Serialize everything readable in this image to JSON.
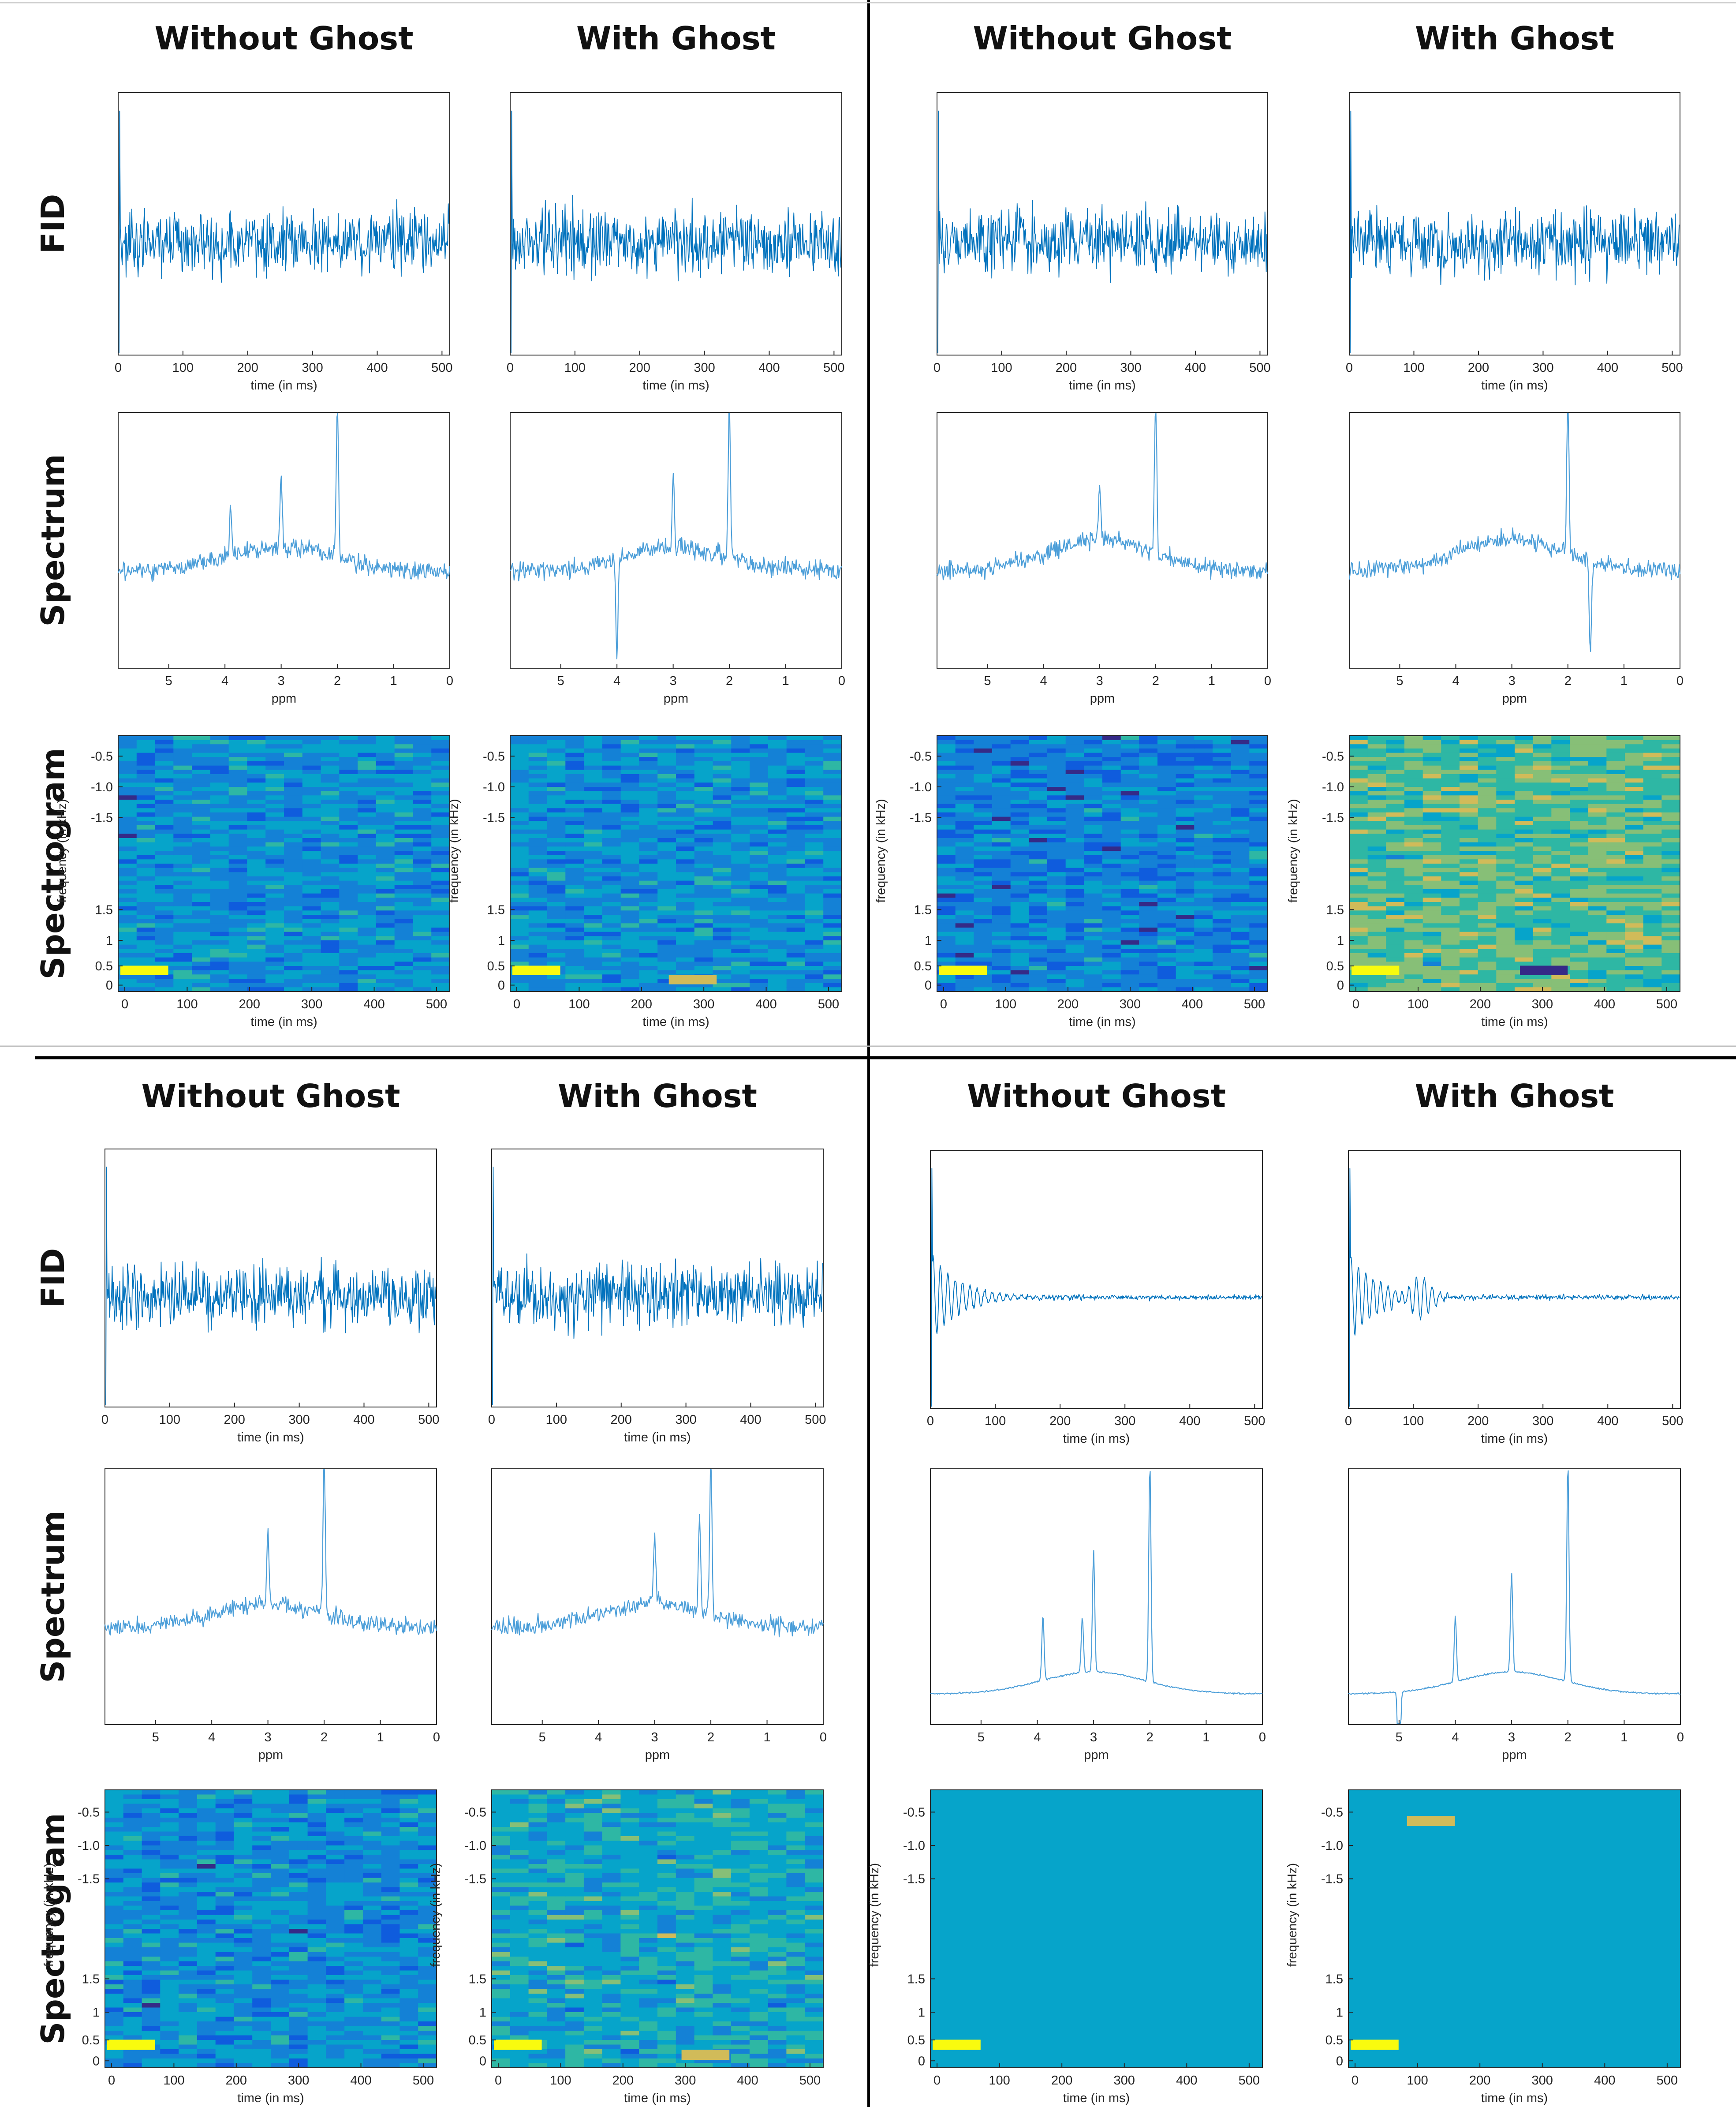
{
  "column_titles": {
    "without": "Without Ghost",
    "with": "With Ghost"
  },
  "row_labels": {
    "fid": "FID",
    "spectrum": "Spectrum",
    "spectrogram": "Spectrogram"
  },
  "colors": {
    "trace": "#0072BD",
    "spectrum_trace": "#4d9fd9",
    "colormap": [
      "#352A87",
      "#0F5CDD",
      "#1481D6",
      "#06A4CA",
      "#2EB7A4",
      "#87BF77",
      "#D1BB59",
      "#FEC832",
      "#F9FB0E"
    ]
  },
  "chart_data": {
    "type": "grid-of-line-and-heatmap",
    "layout": "4 quadrants x (Without Ghost, With Ghost) x (FID, Spectrum, Spectrogram)",
    "fid_axis": {
      "xlabel": "time (in ms)",
      "xlim": [
        0,
        512
      ],
      "xticks": [
        "0",
        "100",
        "200",
        "300",
        "400",
        "500"
      ]
    },
    "spectrum_axis": {
      "xlabel": "ppm",
      "xlim": [
        5.9,
        0
      ],
      "xticks": [
        "5",
        "4",
        "3",
        "2",
        "1",
        "0"
      ]
    },
    "spectrogram_axis": {
      "xlabel": "time (in ms)",
      "ylabel": "frequency (in kHz)",
      "xticks": [
        "0",
        "100",
        "200",
        "300",
        "400",
        "500"
      ],
      "yticks": [
        "-0.5",
        "-1.0",
        "-1.5",
        "1.5",
        "1",
        "0.5",
        "0"
      ]
    },
    "quadrants": [
      {
        "position": "top-left",
        "panels": [
          {
            "column": "Without Ghost",
            "fid": {
              "initial_decay": 0.0,
              "noise": 1.0
            },
            "spectrum": {
              "peaks": [
                {
                  "ppm": 2.0,
                  "height": 1.0
                },
                {
                  "ppm": 3.0,
                  "height": 0.45
                },
                {
                  "ppm": 3.9,
                  "height": 0.3
                }
              ],
              "baseline_bump": 0.15,
              "noise": 0.3
            },
            "spectrogram": {
              "background": 0.3,
              "hot_spots": [
                {
                  "t": 30,
                  "f": 0.2,
                  "level": 0.95
                }
              ]
            }
          },
          {
            "column": "With Ghost",
            "fid": {
              "initial_decay": 0.0,
              "noise": 1.0
            },
            "spectrum": {
              "peaks": [
                {
                  "ppm": 2.0,
                  "height": 1.0
                },
                {
                  "ppm": 3.0,
                  "height": 0.45
                },
                {
                  "ppm": 4.0,
                  "height": -0.6
                }
              ],
              "baseline_bump": 0.15,
              "noise": 0.3
            },
            "spectrogram": {
              "background": 0.3,
              "hot_spots": [
                {
                  "t": 30,
                  "f": 0.2,
                  "level": 0.95
                },
                {
                  "t": 280,
                  "f": 0.0,
                  "level": 0.75
                }
              ]
            }
          }
        ]
      },
      {
        "position": "top-right",
        "panels": [
          {
            "column": "Without Ghost",
            "fid": {
              "initial_decay": 0.0,
              "noise": 1.0
            },
            "spectrum": {
              "peaks": [
                {
                  "ppm": 2.0,
                  "height": 1.0
                },
                {
                  "ppm": 3.0,
                  "height": 0.35
                }
              ],
              "baseline_bump": 0.2,
              "noise": 0.3
            },
            "spectrogram": {
              "background": 0.25,
              "hot_spots": [
                {
                  "t": 30,
                  "f": 0.2,
                  "level": 0.95
                }
              ]
            }
          },
          {
            "column": "With Ghost",
            "fid": {
              "initial_decay": 0.0,
              "noise": 1.0
            },
            "spectrum": {
              "peaks": [
                {
                  "ppm": 2.0,
                  "height": 1.0
                },
                {
                  "ppm": 1.6,
                  "height": -0.6
                }
              ],
              "baseline_bump": 0.2,
              "noise": 0.3
            },
            "spectrogram": {
              "background": 0.55,
              "hot_spots": [
                {
                  "t": 30,
                  "f": 0.2,
                  "level": 0.95
                },
                {
                  "t": 300,
                  "f": 0.2,
                  "level": 0.0
                }
              ]
            }
          }
        ]
      },
      {
        "position": "bottom-left",
        "panels": [
          {
            "column": "Without Ghost",
            "fid": {
              "initial_decay": 0.0,
              "noise": 1.0
            },
            "spectrum": {
              "peaks": [
                {
                  "ppm": 2.0,
                  "height": 1.0
                },
                {
                  "ppm": 3.0,
                  "height": 0.45
                }
              ],
              "baseline_bump": 0.15,
              "noise": 0.3
            },
            "spectrogram": {
              "background": 0.3,
              "hot_spots": [
                {
                  "t": 30,
                  "f": 0.2,
                  "level": 0.95
                }
              ]
            }
          },
          {
            "column": "With Ghost",
            "fid": {
              "initial_decay": 0.0,
              "noise": 1.0
            },
            "spectrum": {
              "peaks": [
                {
                  "ppm": 2.0,
                  "height": 1.0
                },
                {
                  "ppm": 2.2,
                  "height": 0.6
                },
                {
                  "ppm": 3.0,
                  "height": 0.45
                }
              ],
              "baseline_bump": 0.15,
              "noise": 0.3
            },
            "spectrogram": {
              "background": 0.4,
              "hot_spots": [
                {
                  "t": 30,
                  "f": 0.2,
                  "level": 0.95
                },
                {
                  "t": 330,
                  "f": 0.0,
                  "level": 0.8
                }
              ]
            }
          }
        ]
      },
      {
        "position": "bottom-right",
        "panels": [
          {
            "column": "Without Ghost",
            "fid": {
              "initial_decay": 1.0,
              "noise": 0.08
            },
            "spectrum": {
              "peaks": [
                {
                  "ppm": 2.0,
                  "height": 1.0
                },
                {
                  "ppm": 3.0,
                  "height": 0.55
                },
                {
                  "ppm": 3.9,
                  "height": 0.3
                },
                {
                  "ppm": 3.2,
                  "height": 0.25
                }
              ],
              "baseline_bump": 0.1,
              "noise": 0.02
            },
            "spectrogram": {
              "background": 0.3,
              "hot_spots": [
                {
                  "t": 30,
                  "f": 0.2,
                  "level": 0.95
                }
              ]
            }
          },
          {
            "column": "With Ghost",
            "fid": {
              "initial_decay": 1.0,
              "noise": 0.08,
              "ghost_echo_ms": 110
            },
            "spectrum": {
              "peaks": [
                {
                  "ppm": 2.0,
                  "height": 1.0
                },
                {
                  "ppm": 3.0,
                  "height": 0.45
                },
                {
                  "ppm": 4.0,
                  "height": 0.3
                },
                {
                  "ppm": 5.0,
                  "height": -0.6
                }
              ],
              "baseline_bump": 0.1,
              "noise": 0.02
            },
            "spectrogram": {
              "background": 0.3,
              "hot_spots": [
                {
                  "t": 30,
                  "f": 0.2,
                  "level": 0.95
                },
                {
                  "t": 120,
                  "f": -0.7,
                  "level": 0.8
                }
              ]
            }
          }
        ]
      }
    ]
  }
}
